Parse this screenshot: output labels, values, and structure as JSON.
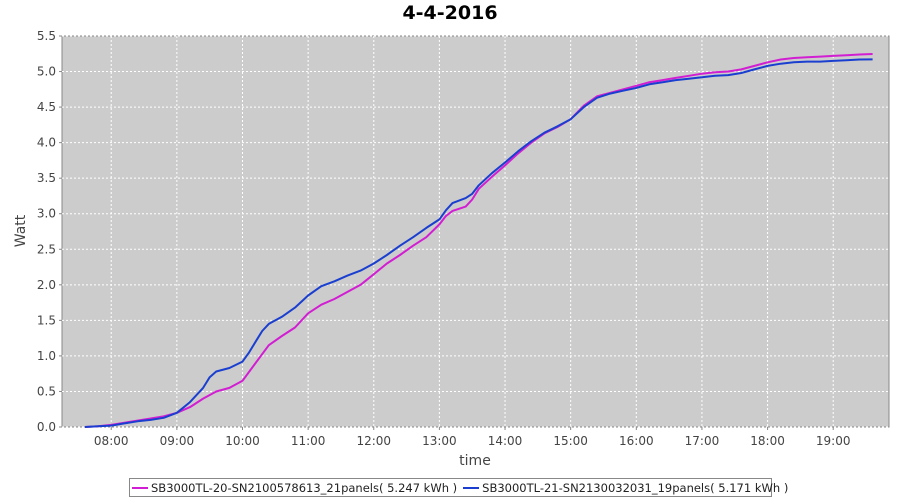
{
  "chart_data": {
    "type": "line",
    "title": "4-4-2016",
    "xlabel": "time",
    "ylabel": "Watt",
    "x_unit": "hour of day",
    "xlim": [
      7.25,
      19.85
    ],
    "ylim": [
      0,
      5.5
    ],
    "x_ticks": [
      8,
      9,
      10,
      11,
      12,
      13,
      14,
      15,
      16,
      17,
      18,
      19
    ],
    "x_tick_labels": [
      "08:00",
      "09:00",
      "10:00",
      "11:00",
      "12:00",
      "13:00",
      "14:00",
      "15:00",
      "16:00",
      "17:00",
      "18:00",
      "19:00"
    ],
    "y_ticks": [
      0.0,
      0.5,
      1.0,
      1.5,
      2.0,
      2.5,
      3.0,
      3.5,
      4.0,
      4.5,
      5.0,
      5.5
    ],
    "y_tick_labels": [
      "0.0",
      "0.5",
      "1.0",
      "1.5",
      "2.0",
      "2.5",
      "3.0",
      "3.5",
      "4.0",
      "4.5",
      "5.0",
      "5.5"
    ],
    "grid": true,
    "plot_background": "#cccccc",
    "legend_position": "bottom",
    "series": [
      {
        "name": "SB3000TL-20-SN2100578613_21panels( 5.247 kWh )",
        "color": "#d21ed2",
        "points": [
          [
            7.6,
            0.0
          ],
          [
            7.8,
            0.01
          ],
          [
            8.0,
            0.03
          ],
          [
            8.2,
            0.06
          ],
          [
            8.4,
            0.09
          ],
          [
            8.6,
            0.12
          ],
          [
            8.8,
            0.15
          ],
          [
            9.0,
            0.2
          ],
          [
            9.2,
            0.28
          ],
          [
            9.4,
            0.4
          ],
          [
            9.6,
            0.5
          ],
          [
            9.8,
            0.55
          ],
          [
            10.0,
            0.65
          ],
          [
            10.2,
            0.9
          ],
          [
            10.4,
            1.15
          ],
          [
            10.6,
            1.28
          ],
          [
            10.8,
            1.4
          ],
          [
            11.0,
            1.6
          ],
          [
            11.2,
            1.72
          ],
          [
            11.4,
            1.8
          ],
          [
            11.6,
            1.9
          ],
          [
            11.8,
            2.0
          ],
          [
            12.0,
            2.15
          ],
          [
            12.2,
            2.3
          ],
          [
            12.4,
            2.42
          ],
          [
            12.6,
            2.55
          ],
          [
            12.8,
            2.67
          ],
          [
            13.0,
            2.85
          ],
          [
            13.1,
            2.97
          ],
          [
            13.2,
            3.04
          ],
          [
            13.4,
            3.1
          ],
          [
            13.5,
            3.2
          ],
          [
            13.6,
            3.35
          ],
          [
            13.8,
            3.52
          ],
          [
            14.0,
            3.68
          ],
          [
            14.2,
            3.85
          ],
          [
            14.4,
            4.0
          ],
          [
            14.6,
            4.13
          ],
          [
            14.8,
            4.22
          ],
          [
            15.0,
            4.33
          ],
          [
            15.2,
            4.52
          ],
          [
            15.4,
            4.65
          ],
          [
            15.6,
            4.7
          ],
          [
            15.8,
            4.75
          ],
          [
            16.0,
            4.8
          ],
          [
            16.2,
            4.85
          ],
          [
            16.4,
            4.88
          ],
          [
            16.6,
            4.91
          ],
          [
            16.8,
            4.94
          ],
          [
            17.0,
            4.97
          ],
          [
            17.2,
            4.99
          ],
          [
            17.4,
            5.0
          ],
          [
            17.6,
            5.03
          ],
          [
            17.8,
            5.08
          ],
          [
            18.0,
            5.13
          ],
          [
            18.2,
            5.17
          ],
          [
            18.4,
            5.19
          ],
          [
            18.6,
            5.2
          ],
          [
            18.8,
            5.21
          ],
          [
            19.0,
            5.22
          ],
          [
            19.2,
            5.23
          ],
          [
            19.4,
            5.24
          ],
          [
            19.6,
            5.247
          ]
        ]
      },
      {
        "name": "SB3000TL-21-SN2130032031_19panels( 5.171 kWh )",
        "color": "#1a3fd0",
        "points": [
          [
            7.6,
            0.0
          ],
          [
            7.8,
            0.01
          ],
          [
            8.0,
            0.02
          ],
          [
            8.2,
            0.05
          ],
          [
            8.4,
            0.08
          ],
          [
            8.6,
            0.1
          ],
          [
            8.8,
            0.13
          ],
          [
            9.0,
            0.2
          ],
          [
            9.2,
            0.35
          ],
          [
            9.4,
            0.55
          ],
          [
            9.5,
            0.7
          ],
          [
            9.6,
            0.78
          ],
          [
            9.8,
            0.83
          ],
          [
            10.0,
            0.92
          ],
          [
            10.1,
            1.05
          ],
          [
            10.2,
            1.2
          ],
          [
            10.3,
            1.35
          ],
          [
            10.4,
            1.45
          ],
          [
            10.6,
            1.55
          ],
          [
            10.8,
            1.68
          ],
          [
            11.0,
            1.85
          ],
          [
            11.2,
            1.98
          ],
          [
            11.4,
            2.05
          ],
          [
            11.6,
            2.13
          ],
          [
            11.8,
            2.2
          ],
          [
            12.0,
            2.3
          ],
          [
            12.2,
            2.42
          ],
          [
            12.4,
            2.55
          ],
          [
            12.6,
            2.67
          ],
          [
            12.8,
            2.8
          ],
          [
            13.0,
            2.92
          ],
          [
            13.1,
            3.05
          ],
          [
            13.2,
            3.15
          ],
          [
            13.4,
            3.22
          ],
          [
            13.5,
            3.28
          ],
          [
            13.6,
            3.4
          ],
          [
            13.8,
            3.57
          ],
          [
            14.0,
            3.72
          ],
          [
            14.2,
            3.88
          ],
          [
            14.4,
            4.02
          ],
          [
            14.6,
            4.14
          ],
          [
            14.8,
            4.23
          ],
          [
            15.0,
            4.33
          ],
          [
            15.2,
            4.5
          ],
          [
            15.4,
            4.63
          ],
          [
            15.6,
            4.69
          ],
          [
            15.8,
            4.73
          ],
          [
            16.0,
            4.77
          ],
          [
            16.2,
            4.82
          ],
          [
            16.4,
            4.85
          ],
          [
            16.6,
            4.88
          ],
          [
            16.8,
            4.9
          ],
          [
            17.0,
            4.92
          ],
          [
            17.2,
            4.94
          ],
          [
            17.4,
            4.95
          ],
          [
            17.6,
            4.98
          ],
          [
            17.8,
            5.03
          ],
          [
            18.0,
            5.08
          ],
          [
            18.2,
            5.11
          ],
          [
            18.4,
            5.13
          ],
          [
            18.6,
            5.14
          ],
          [
            18.8,
            5.14
          ],
          [
            19.0,
            5.15
          ],
          [
            19.2,
            5.16
          ],
          [
            19.4,
            5.17
          ],
          [
            19.6,
            5.171
          ]
        ]
      }
    ]
  }
}
